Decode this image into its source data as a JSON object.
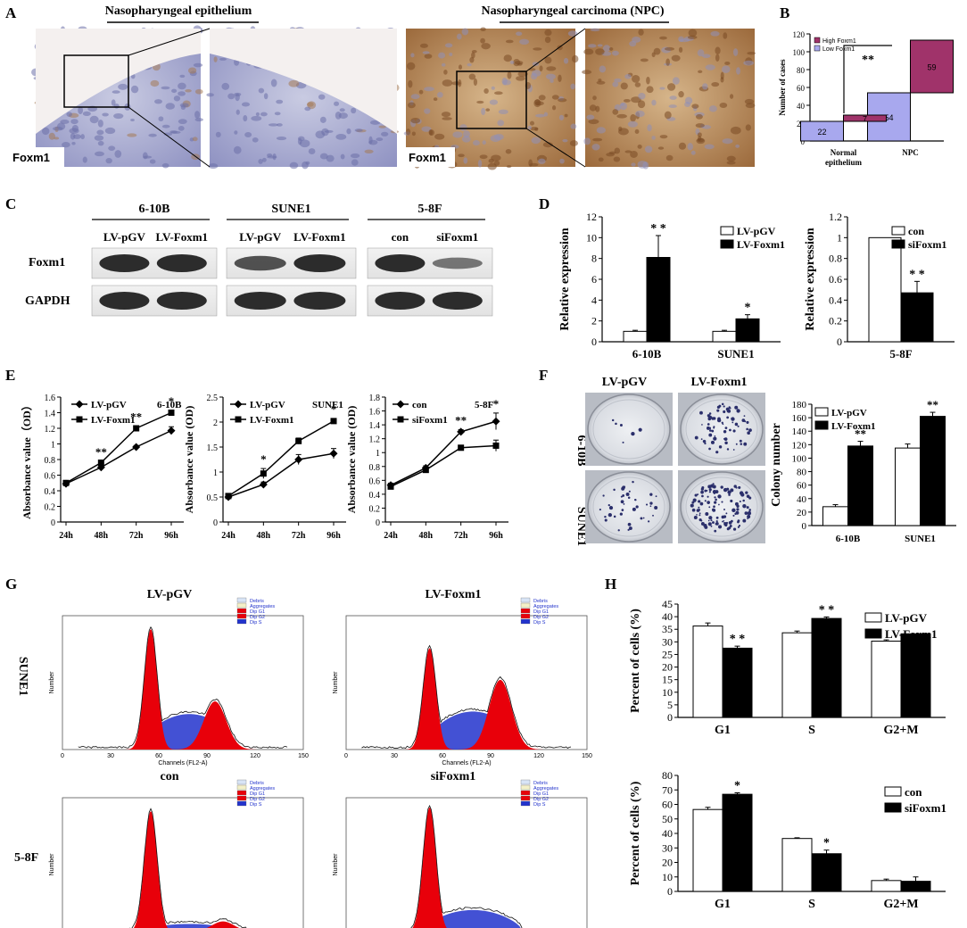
{
  "panel_letters": [
    "A",
    "B",
    "C",
    "D",
    "E",
    "F",
    "G",
    "H"
  ],
  "A": {
    "left_title": "Nasopharyngeal epithelium",
    "right_title": "Nasopharyngeal carcinoma (NPC)",
    "label": "Foxm1"
  },
  "C": {
    "groups": [
      "6-10B",
      "SUNE1",
      "5-8F"
    ],
    "lanes": [
      "LV-pGV",
      "LV-Foxm1",
      "LV-pGV",
      "LV-Foxm1",
      "con",
      "siFoxm1"
    ],
    "rows": [
      "Foxm1",
      "GAPDH"
    ]
  },
  "F": {
    "col_labels": [
      "LV-pGV",
      "LV-Foxm1"
    ],
    "row_labels": [
      "6-10B",
      "SUNE1"
    ]
  },
  "G": {
    "titles": [
      "LV-pGV",
      "LV-Foxm1",
      "con",
      "siFoxm1"
    ],
    "row_labels": [
      "SUNE1",
      "5-8F"
    ],
    "legend": [
      "Debris",
      "Aggregates",
      "Dip G1",
      "Dip G2",
      "Dip S"
    ],
    "xlabel": "Channels (FL2-A)",
    "ylabel": "Number",
    "xticks": [
      "0",
      "30",
      "60",
      "90",
      "120",
      "150"
    ]
  },
  "colors": {
    "red": "#e8000a",
    "blue": "#2233cc",
    "black": "#000000",
    "maroon": "#a0336a",
    "lilac": "#a8a8ee"
  },
  "chart_data": [
    {
      "id": "B",
      "type": "bar",
      "stacked": true,
      "ylabel": "Number of cases",
      "categories": [
        "Normal epithelium",
        "NPC"
      ],
      "series": [
        {
          "name": "Low Foxm1",
          "values": [
            22,
            54
          ],
          "color": "#a8a8ee"
        },
        {
          "name": "High Foxm1",
          "values": [
            7,
            59
          ],
          "color": "#a0336a"
        }
      ],
      "ylim": [
        0,
        120
      ],
      "yticks": [
        0,
        20,
        40,
        60,
        80,
        100,
        120
      ],
      "annotation": "**"
    },
    {
      "id": "D1",
      "type": "bar",
      "ylabel": "Relative expression",
      "categories": [
        "6-10B",
        "SUNE1"
      ],
      "series": [
        {
          "name": "LV-pGV",
          "values": [
            1,
            1
          ],
          "errors": [
            0.1,
            0.1
          ],
          "color": "#ffffff"
        },
        {
          "name": "LV-Foxm1",
          "values": [
            8.1,
            2.2
          ],
          "errors": [
            2.1,
            0.4
          ],
          "color": "#000000"
        }
      ],
      "ylim": [
        0,
        12
      ],
      "yticks": [
        0,
        2,
        4,
        6,
        8,
        10,
        12
      ],
      "stars": [
        "* *",
        "*"
      ]
    },
    {
      "id": "D2",
      "type": "bar",
      "ylabel": "Relative expression",
      "categories": [
        "5-8F"
      ],
      "series": [
        {
          "name": "con",
          "values": [
            1
          ],
          "errors": [
            0
          ],
          "color": "#ffffff"
        },
        {
          "name": "siFoxm1",
          "values": [
            0.47
          ],
          "errors": [
            0.11
          ],
          "color": "#000000"
        }
      ],
      "ylim": [
        0,
        1.2
      ],
      "yticks": [
        0,
        0.2,
        0.4,
        0.6,
        0.8,
        1,
        1.2
      ],
      "stars": [
        "* *"
      ]
    },
    {
      "id": "E1",
      "type": "line",
      "title": "6-10B",
      "ylabel": "Absorbance value（OD）",
      "x": [
        "24h",
        "48h",
        "72h",
        "96h"
      ],
      "series": [
        {
          "name": "LV-pGV",
          "values": [
            0.49,
            0.7,
            0.96,
            1.17
          ],
          "errors": [
            0.02,
            0.02,
            0.02,
            0.05
          ],
          "marker": "diamond"
        },
        {
          "name": "LV-Foxm1",
          "values": [
            0.5,
            0.76,
            1.2,
            1.4
          ],
          "errors": [
            0.02,
            0.02,
            0.03,
            0.03
          ],
          "marker": "square"
        }
      ],
      "ylim": [
        0,
        1.6
      ],
      "yticks": [
        0,
        0.2,
        0.4,
        0.6,
        0.8,
        1,
        1.2,
        1.4,
        1.6
      ],
      "stars": [
        "",
        "**",
        "**",
        "*"
      ]
    },
    {
      "id": "E2",
      "type": "line",
      "title": "SUNE1",
      "ylabel": "Absorbance value (OD)",
      "x": [
        "24h",
        "48h",
        "72h",
        "96h"
      ],
      "series": [
        {
          "name": "LV-pGV",
          "values": [
            0.5,
            0.75,
            1.25,
            1.37
          ],
          "errors": [
            0.02,
            0.05,
            0.1,
            0.1
          ],
          "marker": "diamond"
        },
        {
          "name": "LV-Foxm1",
          "values": [
            0.52,
            0.97,
            1.62,
            2.02
          ],
          "errors": [
            0.02,
            0.1,
            0.06,
            0.05
          ],
          "marker": "square"
        }
      ],
      "ylim": [
        0,
        2.5
      ],
      "yticks": [
        0,
        0.5,
        1,
        1.5,
        2,
        2.5
      ],
      "stars": [
        "",
        "*",
        "",
        "*"
      ]
    },
    {
      "id": "E3",
      "type": "line",
      "title": "5-8F",
      "ylabel": "Absorbance value (OD)",
      "x": [
        "24h",
        "48h",
        "72h",
        "96h"
      ],
      "series": [
        {
          "name": "con",
          "values": [
            0.53,
            0.78,
            1.3,
            1.45
          ],
          "errors": [
            0.03,
            0.03,
            0.03,
            0.12
          ],
          "marker": "diamond"
        },
        {
          "name": "siFoxm1",
          "values": [
            0.51,
            0.75,
            1.07,
            1.1
          ],
          "errors": [
            0.03,
            0.03,
            0.03,
            0.08
          ],
          "marker": "square"
        }
      ],
      "ylim": [
        0,
        1.8
      ],
      "yticks": [
        0,
        0.2,
        0.4,
        0.6,
        0.8,
        1,
        1.2,
        1.4,
        1.6,
        1.8
      ],
      "stars": [
        "",
        "",
        "**",
        "*"
      ]
    },
    {
      "id": "F",
      "type": "bar",
      "ylabel": "Colony number",
      "categories": [
        "6-10B",
        "SUNE1"
      ],
      "series": [
        {
          "name": "LV-pGV",
          "values": [
            28,
            115
          ],
          "errors": [
            3,
            6
          ],
          "color": "#ffffff"
        },
        {
          "name": "LV-Foxm1",
          "values": [
            118,
            162
          ],
          "errors": [
            7,
            6
          ],
          "color": "#000000"
        }
      ],
      "ylim": [
        0,
        180
      ],
      "yticks": [
        0,
        20,
        40,
        60,
        80,
        100,
        120,
        140,
        160,
        180
      ],
      "stars": [
        "**",
        "**"
      ]
    },
    {
      "id": "H1",
      "type": "bar",
      "ylabel": "Percent of cells (%)",
      "categories": [
        "G1",
        "S",
        "G2+M"
      ],
      "series": [
        {
          "name": "LV-pGV",
          "values": [
            36.3,
            33.6,
            30.3
          ],
          "errors": [
            1.2,
            0.7,
            0.5
          ],
          "color": "#ffffff"
        },
        {
          "name": "LV-Foxm1",
          "values": [
            27.5,
            39.3,
            33.2
          ],
          "errors": [
            0.8,
            0.6,
            0
          ],
          "color": "#000000"
        }
      ],
      "ylim": [
        0,
        45
      ],
      "yticks": [
        0,
        5,
        10,
        15,
        20,
        25,
        30,
        35,
        40,
        45
      ],
      "stars": [
        "* *",
        "* *",
        ""
      ]
    },
    {
      "id": "H2",
      "type": "bar",
      "ylabel": "Percent of cells (%)",
      "categories": [
        "G1",
        "S",
        "G2+M"
      ],
      "series": [
        {
          "name": "con",
          "values": [
            56.5,
            36.5,
            7.5
          ],
          "errors": [
            1.5,
            0.5,
            1
          ],
          "color": "#ffffff"
        },
        {
          "name": "siFoxm1",
          "values": [
            67,
            26,
            7
          ],
          "errors": [
            1,
            2.5,
            3
          ],
          "color": "#000000"
        }
      ],
      "ylim": [
        0,
        80
      ],
      "yticks": [
        0,
        10,
        20,
        30,
        40,
        50,
        60,
        70,
        80
      ],
      "stars": [
        "*",
        "*",
        ""
      ]
    }
  ]
}
